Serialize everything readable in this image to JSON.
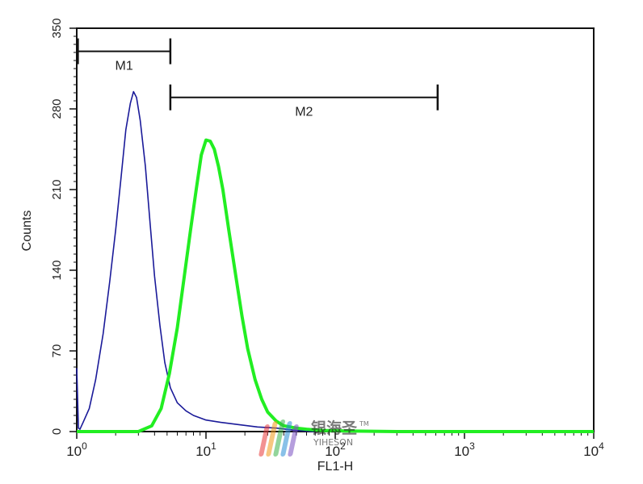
{
  "chart_data": {
    "type": "line",
    "xlabel": "FL1-H",
    "ylabel": "Counts",
    "x_scale": "log",
    "xlim": [
      1,
      10000
    ],
    "ylim": [
      0,
      350
    ],
    "x_ticks": [
      {
        "value": 1,
        "base": "10",
        "exp": "0"
      },
      {
        "value": 10,
        "base": "10",
        "exp": "1"
      },
      {
        "value": 100,
        "base": "10",
        "exp": "2"
      },
      {
        "value": 1000,
        "base": "10",
        "exp": "3"
      },
      {
        "value": 10000,
        "base": "10",
        "exp": "4"
      }
    ],
    "y_ticks": [
      {
        "value": 0,
        "label": "0"
      },
      {
        "value": 70,
        "label": "70"
      },
      {
        "value": 140,
        "label": "140"
      },
      {
        "value": 210,
        "label": "210"
      },
      {
        "value": 280,
        "label": "280"
      },
      {
        "value": 350,
        "label": "350"
      }
    ],
    "grid": false,
    "legend": "none",
    "series": [
      {
        "color": "#1a1a99",
        "x": [
          1,
          1.03,
          1.06,
          1.12,
          1.25,
          1.4,
          1.6,
          1.8,
          2.0,
          2.2,
          2.4,
          2.6,
          2.75,
          2.9,
          3.1,
          3.4,
          3.7,
          4.0,
          4.4,
          4.8,
          5.3,
          6.0,
          7.0,
          8.0,
          10,
          13,
          18,
          25,
          35,
          50,
          70
        ],
        "y": [
          55,
          3,
          2,
          8,
          20,
          45,
          85,
          130,
          175,
          220,
          262,
          285,
          295,
          290,
          270,
          230,
          180,
          135,
          92,
          60,
          38,
          25,
          18,
          14,
          10,
          8,
          6,
          4,
          3,
          1,
          0
        ]
      },
      {
        "color": "#22ee22",
        "x": [
          1,
          3.0,
          3.8,
          4.5,
          5.2,
          6.0,
          6.8,
          7.6,
          8.4,
          9.2,
          10.0,
          10.8,
          11.6,
          12.5,
          13.5,
          15,
          17,
          19,
          21,
          24,
          27,
          30,
          35,
          40,
          50,
          60,
          80,
          120,
          300,
          10000
        ],
        "y": [
          0,
          0,
          5,
          20,
          50,
          90,
          135,
          175,
          210,
          240,
          253,
          252,
          245,
          230,
          210,
          175,
          135,
          100,
          72,
          45,
          28,
          17,
          9,
          5,
          3,
          2,
          1,
          0.5,
          0,
          0
        ]
      }
    ],
    "gates": [
      {
        "label": "M1",
        "x_start": 1.02,
        "x_end": 5.3,
        "y": 330
      },
      {
        "label": "M2",
        "x_start": 5.3,
        "x_end": 620,
        "y": 290
      }
    ]
  },
  "watermark": {
    "text_cn": "银海圣",
    "trademark": "TM",
    "text_en": "YIHESON",
    "color": "#2aa8dc"
  }
}
